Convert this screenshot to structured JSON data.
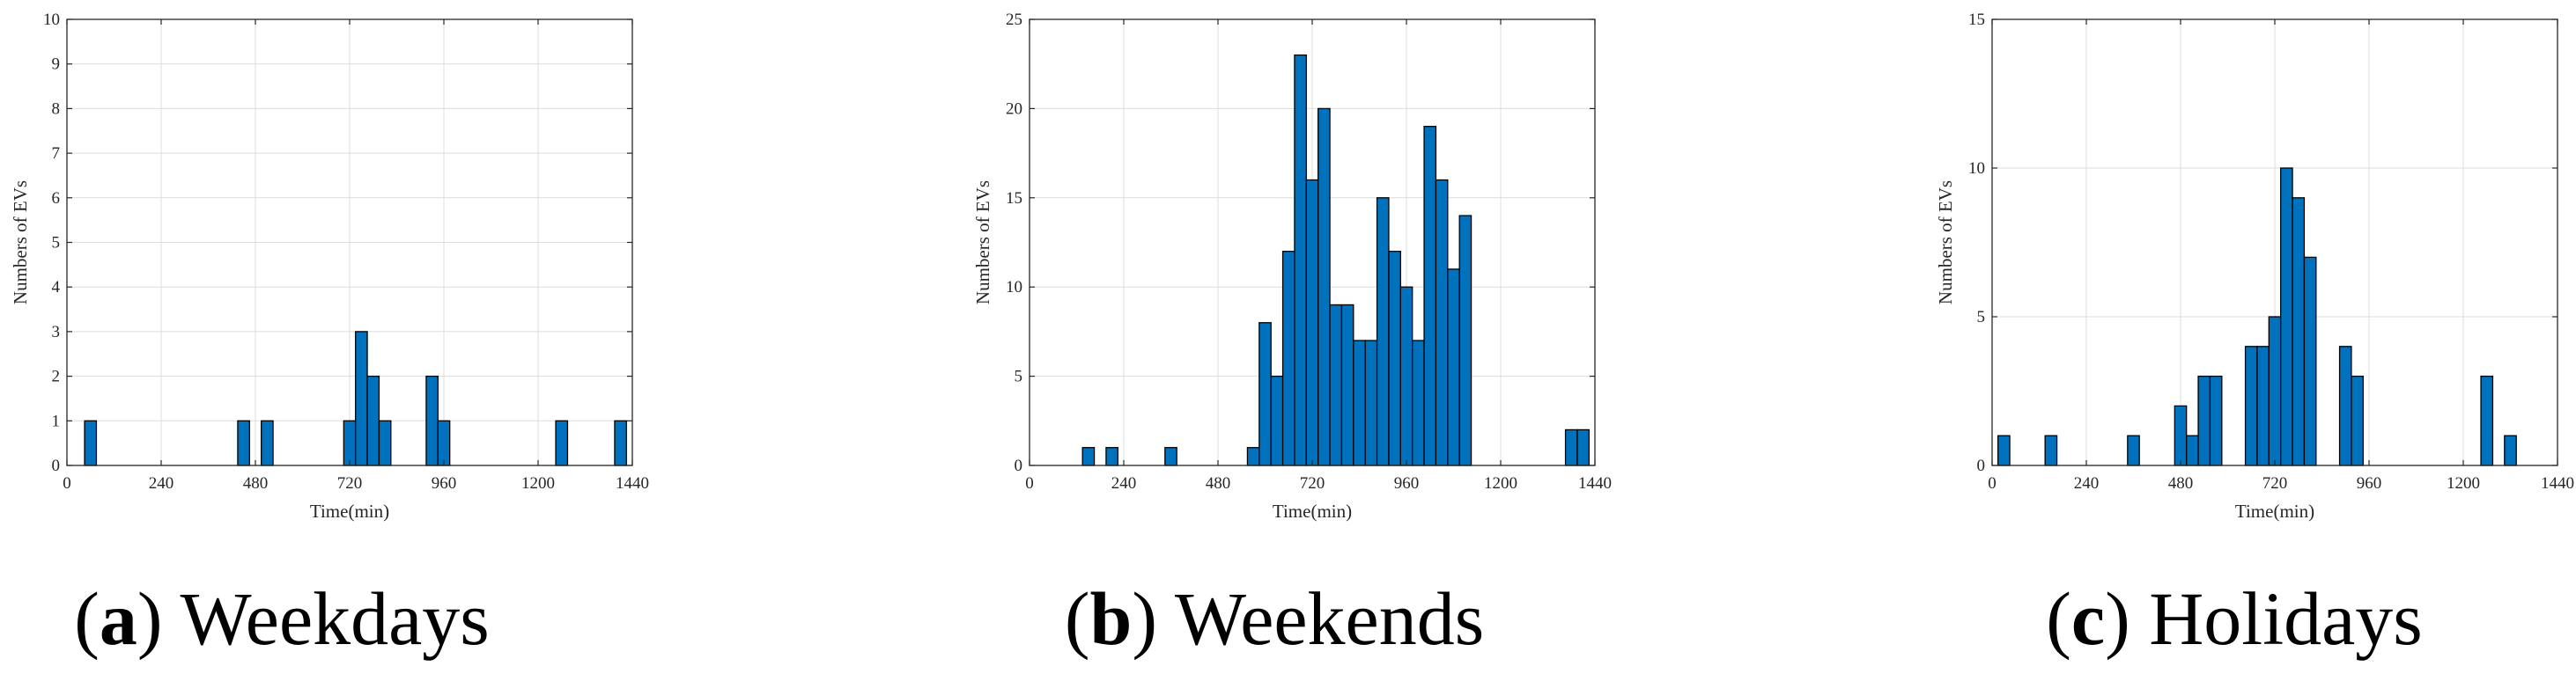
{
  "colors": {
    "bar_fill": "#0072BD",
    "bar_edge": "#000000",
    "grid": "#dcdcdc",
    "axis": "#262626"
  },
  "chart_data": [
    {
      "type": "bar",
      "panel_letter": "a",
      "caption": "Weekdays",
      "xlabel": "Time(min)",
      "ylabel": "Numbers of EVs",
      "xlim": [
        0,
        1440
      ],
      "ylim": [
        0,
        10
      ],
      "xticks": [
        0,
        240,
        480,
        720,
        960,
        1200,
        1440
      ],
      "yticks": [
        0,
        1,
        2,
        3,
        4,
        5,
        6,
        7,
        8,
        9,
        10
      ],
      "bin_width": 30,
      "grid": true,
      "bins": [
        {
          "x": 60,
          "y": 1
        },
        {
          "x": 450,
          "y": 1
        },
        {
          "x": 510,
          "y": 1
        },
        {
          "x": 720,
          "y": 1
        },
        {
          "x": 750,
          "y": 3
        },
        {
          "x": 780,
          "y": 2
        },
        {
          "x": 810,
          "y": 1
        },
        {
          "x": 930,
          "y": 2
        },
        {
          "x": 960,
          "y": 1
        },
        {
          "x": 1260,
          "y": 1
        },
        {
          "x": 1410,
          "y": 1
        }
      ]
    },
    {
      "type": "bar",
      "panel_letter": "b",
      "caption": "Weekends",
      "xlabel": "Time(min)",
      "ylabel": "Numbers of EVs",
      "xlim": [
        0,
        1440
      ],
      "ylim": [
        0,
        25
      ],
      "xticks": [
        0,
        240,
        480,
        720,
        960,
        1200,
        1440
      ],
      "yticks": [
        0,
        5,
        10,
        15,
        20,
        25
      ],
      "bin_width": 30,
      "grid": true,
      "bins": [
        {
          "x": 150,
          "y": 1
        },
        {
          "x": 210,
          "y": 1
        },
        {
          "x": 360,
          "y": 1
        },
        {
          "x": 570,
          "y": 1
        },
        {
          "x": 600,
          "y": 8
        },
        {
          "x": 630,
          "y": 5
        },
        {
          "x": 660,
          "y": 12
        },
        {
          "x": 690,
          "y": 23
        },
        {
          "x": 720,
          "y": 16
        },
        {
          "x": 750,
          "y": 20
        },
        {
          "x": 780,
          "y": 9
        },
        {
          "x": 810,
          "y": 9
        },
        {
          "x": 840,
          "y": 7
        },
        {
          "x": 870,
          "y": 7
        },
        {
          "x": 900,
          "y": 15
        },
        {
          "x": 930,
          "y": 12
        },
        {
          "x": 960,
          "y": 10
        },
        {
          "x": 990,
          "y": 7
        },
        {
          "x": 1020,
          "y": 19
        },
        {
          "x": 1050,
          "y": 16
        },
        {
          "x": 1080,
          "y": 11
        },
        {
          "x": 1110,
          "y": 14
        },
        {
          "x": 1380,
          "y": 2
        },
        {
          "x": 1410,
          "y": 2
        }
      ]
    },
    {
      "type": "bar",
      "panel_letter": "c",
      "caption": "Holidays",
      "xlabel": "Time(min)",
      "ylabel": "Numbers of EVs",
      "xlim": [
        0,
        1440
      ],
      "ylim": [
        0,
        15
      ],
      "xticks": [
        0,
        240,
        480,
        720,
        960,
        1200,
        1440
      ],
      "yticks": [
        0,
        5,
        10,
        15
      ],
      "bin_width": 30,
      "grid": true,
      "bins": [
        {
          "x": 30,
          "y": 1
        },
        {
          "x": 150,
          "y": 1
        },
        {
          "x": 360,
          "y": 1
        },
        {
          "x": 480,
          "y": 2
        },
        {
          "x": 510,
          "y": 1
        },
        {
          "x": 540,
          "y": 3
        },
        {
          "x": 570,
          "y": 3
        },
        {
          "x": 660,
          "y": 4
        },
        {
          "x": 690,
          "y": 4
        },
        {
          "x": 720,
          "y": 5
        },
        {
          "x": 750,
          "y": 10
        },
        {
          "x": 780,
          "y": 9
        },
        {
          "x": 810,
          "y": 7
        },
        {
          "x": 900,
          "y": 4
        },
        {
          "x": 930,
          "y": 3
        },
        {
          "x": 1260,
          "y": 3
        },
        {
          "x": 1320,
          "y": 1
        }
      ]
    }
  ]
}
